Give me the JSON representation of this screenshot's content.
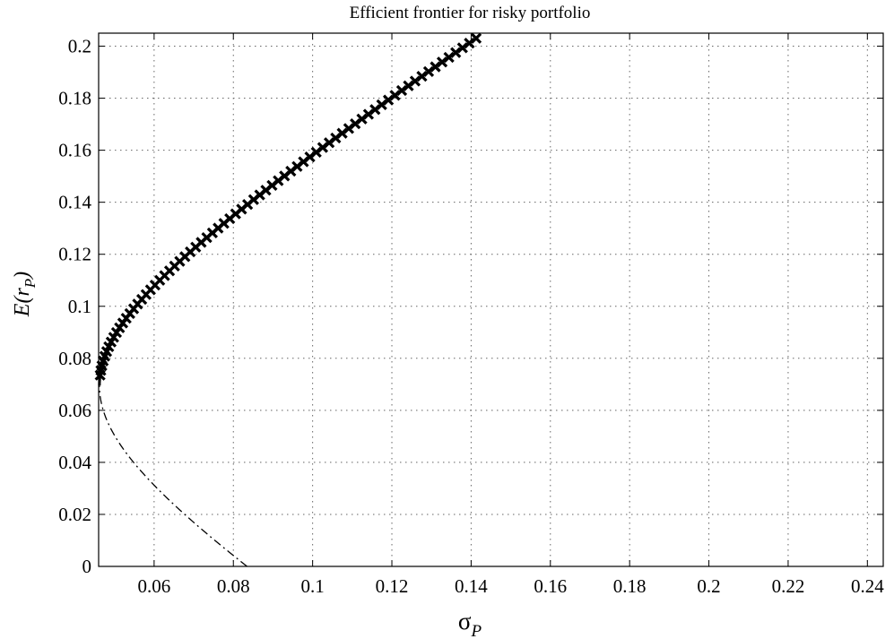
{
  "chart_data": {
    "type": "line",
    "title": "Efficient frontier for risky portfolio",
    "xlabel": {
      "main": "σ",
      "sub": "P"
    },
    "ylabel": {
      "pre": "E(r",
      "sub": "P",
      "post": ")"
    },
    "xlim": [
      0.046,
      0.244
    ],
    "ylim": [
      0,
      0.205
    ],
    "xticks": [
      0.06,
      0.08,
      0.1,
      0.12,
      0.14,
      0.16,
      0.18,
      0.2,
      0.22,
      0.24
    ],
    "xtick_labels": [
      "0.06",
      "0.08",
      "0.1",
      "0.12",
      "0.14",
      "0.16",
      "0.18",
      "0.2",
      "0.22",
      "0.24"
    ],
    "yticks": [
      0,
      0.02,
      0.04,
      0.06,
      0.08,
      0.1,
      0.12,
      0.14,
      0.16,
      0.18,
      0.2
    ],
    "ytick_labels": [
      "0",
      "0.02",
      "0.04",
      "0.06",
      "0.08",
      "0.1",
      "0.12",
      "0.14",
      "0.16",
      "0.18",
      "0.2"
    ],
    "grid": true,
    "frontier": {
      "min_variance": {
        "sigma": 0.0462,
        "er": 0.0695
      },
      "curvature": 1.0,
      "er_range_upper": [
        0.0735,
        0.203
      ],
      "er_range_lower": [
        0.0,
        0.0695
      ],
      "marker_count": 72
    },
    "series": [
      {
        "key": "efficient",
        "style": "solid-with-x-markers",
        "color": "#000000"
      },
      {
        "key": "inefficient",
        "style": "dash-dot",
        "color": "#000000"
      }
    ]
  }
}
